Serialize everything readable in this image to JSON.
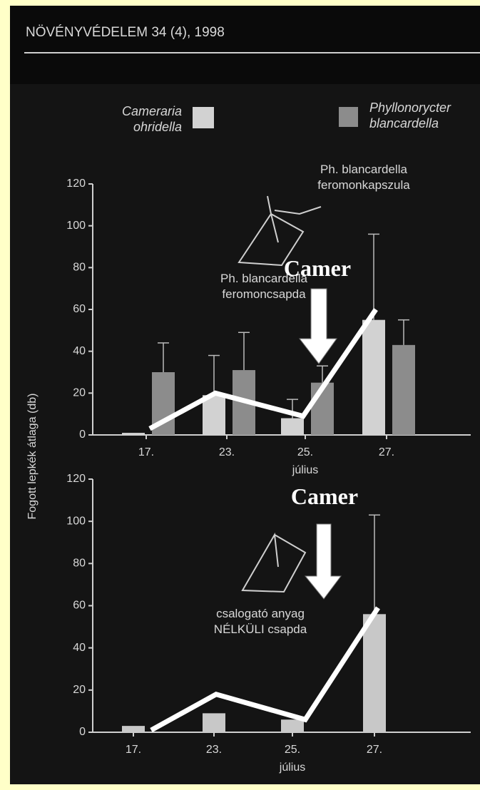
{
  "header": "NÖVÉNYVÉDELEM 34 (4), 1998",
  "chart_data": [
    {
      "type": "bar",
      "categories": [
        "17.",
        "23.",
        "25.",
        "27."
      ],
      "xlabel": "július",
      "ylabel": "Fogott lepkék átlaga (db)",
      "ylim": [
        0,
        120
      ],
      "yticks": [
        0,
        20,
        40,
        60,
        80,
        100,
        120
      ],
      "series": [
        {
          "name": "Cameraria ohridella",
          "color": "#d2d2d2",
          "values": [
            1,
            19,
            8,
            55
          ],
          "errors": [
            null,
            19,
            9,
            41
          ]
        },
        {
          "name": "Phyllonorycter blancardella",
          "color": "#8c8c8c",
          "values": [
            30,
            31,
            25,
            43
          ],
          "errors": [
            14,
            18,
            8,
            12
          ]
        }
      ],
      "overlay": {
        "color": "#ffffff",
        "values": [
          3,
          20,
          9,
          60
        ]
      },
      "annotations": [
        "Ph. blancardella feromonkapszula",
        "Ph. blancardella feromoncsapda",
        "Camer"
      ]
    },
    {
      "type": "bar",
      "categories": [
        "17.",
        "23.",
        "25.",
        "27."
      ],
      "xlabel": "július",
      "ylim": [
        0,
        120
      ],
      "yticks": [
        0,
        20,
        40,
        60,
        80,
        100,
        120
      ],
      "series": [
        {
          "color": "#c8c8c8",
          "values": [
            3,
            9,
            6,
            56
          ],
          "errors": [
            null,
            null,
            null,
            47
          ]
        }
      ],
      "overlay": {
        "color": "#ffffff",
        "values": [
          1,
          18,
          6,
          59
        ]
      },
      "annotations": [
        "Camer",
        "csalogató anyag NÉLKÜLI csapda"
      ]
    }
  ]
}
